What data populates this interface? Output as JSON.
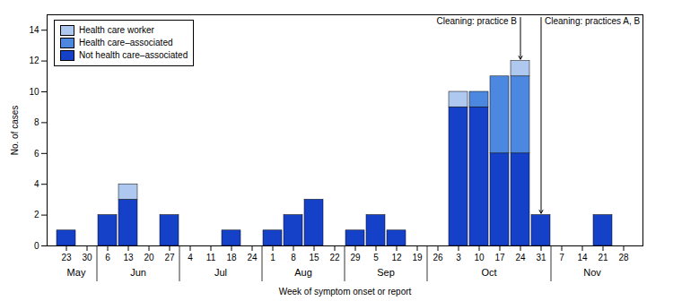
{
  "chart_data": {
    "type": "bar",
    "stacked": true,
    "categories": [
      "23",
      "30",
      "6",
      "13",
      "20",
      "27",
      "4",
      "11",
      "18",
      "24",
      "1",
      "8",
      "15",
      "22",
      "29",
      "5",
      "12",
      "19",
      "26",
      "3",
      "10",
      "17",
      "24",
      "31",
      "7",
      "14",
      "21",
      "28"
    ],
    "series": [
      {
        "name": "Not health care–associated",
        "color": "#1540c8",
        "values": [
          1,
          0,
          2,
          3,
          0,
          2,
          0,
          0,
          1,
          0,
          1,
          2,
          3,
          0,
          1,
          2,
          1,
          0,
          0,
          9,
          9,
          6,
          6,
          2,
          0,
          0,
          2,
          0
        ]
      },
      {
        "name": "Health care–associated",
        "color": "#4d88e0",
        "values": [
          0,
          0,
          0,
          0,
          0,
          0,
          0,
          0,
          0,
          0,
          0,
          0,
          0,
          0,
          0,
          0,
          0,
          0,
          0,
          0,
          1,
          5,
          5,
          0,
          0,
          0,
          0,
          0
        ]
      },
      {
        "name": "Health care worker",
        "color": "#aec8f0",
        "values": [
          0,
          0,
          0,
          1,
          0,
          0,
          0,
          0,
          0,
          0,
          0,
          0,
          0,
          0,
          0,
          0,
          0,
          0,
          0,
          1,
          0,
          0,
          1,
          0,
          0,
          0,
          0,
          0
        ]
      }
    ],
    "xlabel": "Week of symptom onset or report",
    "ylabel": "No. of cases",
    "ylim": [
      0,
      15
    ],
    "yticks": [
      0,
      2,
      4,
      6,
      8,
      10,
      12,
      14
    ],
    "grid": false,
    "legend": "upper left",
    "month_groups": [
      {
        "label": "May",
        "weeks": 2
      },
      {
        "label": "Jun",
        "weeks": 4
      },
      {
        "label": "Jul",
        "weeks": 4
      },
      {
        "label": "Aug",
        "weeks": 4
      },
      {
        "label": "Sep",
        "weeks": 4
      },
      {
        "label": "Oct",
        "weeks": 6
      },
      {
        "label": "Nov",
        "weeks": 4
      }
    ],
    "annotations": [
      {
        "text": "Cleaning: practice B",
        "bar": 22
      },
      {
        "text": "Cleaning: practices A, B",
        "bar": 23
      }
    ]
  }
}
